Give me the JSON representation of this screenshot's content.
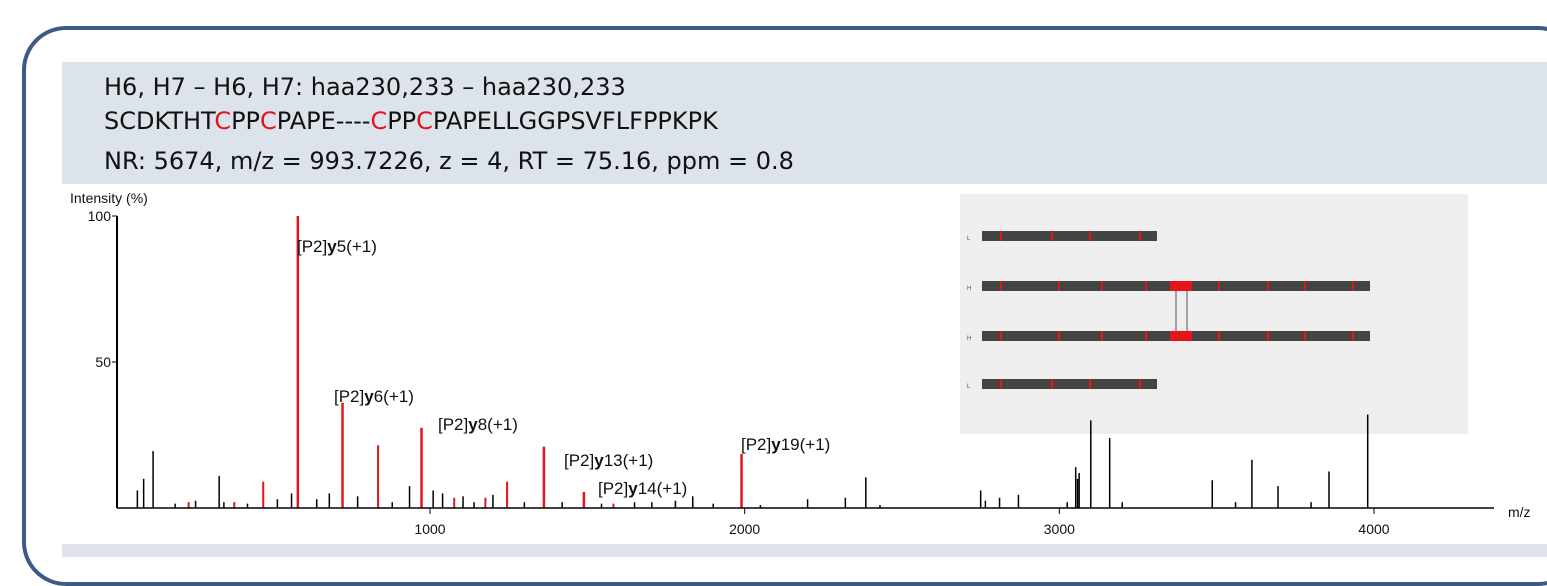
{
  "header": {
    "line1": "H6, H7 – H6, H7: haa230,233 – haa230,233",
    "sequence": [
      {
        "text": "SCDKTHT",
        "red": false
      },
      {
        "text": "C",
        "red": true
      },
      {
        "text": "PP",
        "red": false
      },
      {
        "text": "C",
        "red": true
      },
      {
        "text": "PAPE----",
        "red": false
      },
      {
        "text": "C",
        "red": true
      },
      {
        "text": "PP",
        "red": false
      },
      {
        "text": "C",
        "red": true
      },
      {
        "text": "PAPELLGGPSVFLFPPKPK",
        "red": false
      }
    ],
    "line3": "NR: 5674, m/z = 993.7226, z = 4, RT = 75.16, ppm = 0.8"
  },
  "chart_data": {
    "type": "bar",
    "ylabel": "Intensity (%)",
    "xlabel": "m/z",
    "xlim": [
      0,
      4350
    ],
    "ylim": [
      0,
      100
    ],
    "xticks": [
      1000,
      2000,
      3000,
      4000
    ],
    "yticks": [
      50,
      100
    ],
    "colors": {
      "annotated": "#e4141b",
      "unannotated": "#000000"
    },
    "annotated_peaks": [
      {
        "mz": 580,
        "intensity": 100,
        "label_prefix": "[P2]",
        "ion": "y",
        "label_suffix": "5(+1)"
      },
      {
        "mz": 722,
        "intensity": 36,
        "label_prefix": "[P2]",
        "ion": "y",
        "label_suffix": "6(+1)"
      },
      {
        "mz": 973,
        "intensity": 27.5,
        "label_prefix": "[P2]",
        "ion": "y",
        "label_suffix": "8(+1)"
      },
      {
        "mz": 1362,
        "intensity": 21,
        "label_prefix": "[P2]",
        "ion": "y",
        "label_suffix": "13(+1)"
      },
      {
        "mz": 1489,
        "intensity": 5.5,
        "label_prefix": "[P2]",
        "ion": "y",
        "label_suffix": "14(+1)"
      },
      {
        "mz": 1990,
        "intensity": 18.5,
        "label_prefix": "[P2]",
        "ion": "y",
        "label_suffix": "19(+1)"
      }
    ],
    "other_red_peaks": [
      {
        "mz": 233,
        "intensity": 2
      },
      {
        "mz": 378,
        "intensity": 2
      },
      {
        "mz": 470,
        "intensity": 9
      },
      {
        "mz": 835,
        "intensity": 21.5
      },
      {
        "mz": 1077,
        "intensity": 3.5
      },
      {
        "mz": 1176,
        "intensity": 3.5
      },
      {
        "mz": 1245,
        "intensity": 9
      },
      {
        "mz": 1583,
        "intensity": 1.5
      }
    ],
    "black_peaks": [
      {
        "mz": 70,
        "intensity": 6
      },
      {
        "mz": 90,
        "intensity": 10
      },
      {
        "mz": 120,
        "intensity": 19.5
      },
      {
        "mz": 190,
        "intensity": 1.5
      },
      {
        "mz": 255,
        "intensity": 2.5
      },
      {
        "mz": 330,
        "intensity": 11
      },
      {
        "mz": 345,
        "intensity": 2
      },
      {
        "mz": 420,
        "intensity": 1.5
      },
      {
        "mz": 515,
        "intensity": 3
      },
      {
        "mz": 560,
        "intensity": 5
      },
      {
        "mz": 640,
        "intensity": 3
      },
      {
        "mz": 680,
        "intensity": 5
      },
      {
        "mz": 770,
        "intensity": 4
      },
      {
        "mz": 880,
        "intensity": 2
      },
      {
        "mz": 935,
        "intensity": 7.5
      },
      {
        "mz": 1010,
        "intensity": 6
      },
      {
        "mz": 1040,
        "intensity": 5
      },
      {
        "mz": 1105,
        "intensity": 4
      },
      {
        "mz": 1140,
        "intensity": 2
      },
      {
        "mz": 1200,
        "intensity": 4.5
      },
      {
        "mz": 1300,
        "intensity": 2
      },
      {
        "mz": 1420,
        "intensity": 2
      },
      {
        "mz": 1545,
        "intensity": 1.5
      },
      {
        "mz": 1650,
        "intensity": 2
      },
      {
        "mz": 1705,
        "intensity": 2
      },
      {
        "mz": 1780,
        "intensity": 2.5
      },
      {
        "mz": 1835,
        "intensity": 4
      },
      {
        "mz": 1900,
        "intensity": 1.5
      },
      {
        "mz": 2050,
        "intensity": 1
      },
      {
        "mz": 2200,
        "intensity": 3
      },
      {
        "mz": 2320,
        "intensity": 3.5
      },
      {
        "mz": 2385,
        "intensity": 10.5
      },
      {
        "mz": 2430,
        "intensity": 1
      },
      {
        "mz": 2750,
        "intensity": 6
      },
      {
        "mz": 2765,
        "intensity": 2.5
      },
      {
        "mz": 2810,
        "intensity": 3.5
      },
      {
        "mz": 2870,
        "intensity": 4.5
      },
      {
        "mz": 3025,
        "intensity": 2
      },
      {
        "mz": 3052,
        "intensity": 14
      },
      {
        "mz": 3058,
        "intensity": 10
      },
      {
        "mz": 3063,
        "intensity": 12
      },
      {
        "mz": 3100,
        "intensity": 30
      },
      {
        "mz": 3160,
        "intensity": 24
      },
      {
        "mz": 3200,
        "intensity": 2
      },
      {
        "mz": 3486,
        "intensity": 9.5
      },
      {
        "mz": 3560,
        "intensity": 2
      },
      {
        "mz": 3612,
        "intensity": 16.5
      },
      {
        "mz": 3695,
        "intensity": 7.5
      },
      {
        "mz": 3800,
        "intensity": 2
      },
      {
        "mz": 3857,
        "intensity": 12.5
      },
      {
        "mz": 3980,
        "intensity": 32
      }
    ]
  },
  "inset": {
    "background": "#eeeeee",
    "chain_labels": [
      "L",
      "H",
      "H",
      "L"
    ]
  }
}
